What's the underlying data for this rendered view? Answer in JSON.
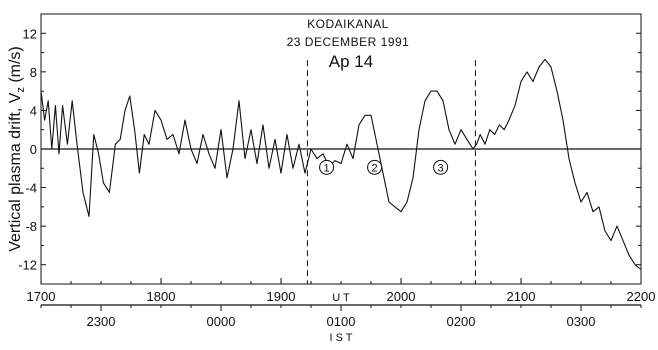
{
  "chart_data": {
    "type": "line",
    "title": "KODAIKANAL",
    "subtitle": "23 DECEMBER 1991",
    "annotation": "Ap 14",
    "ylabel": "Vertical plasma drift, V",
    "ylabel_subscript": "z",
    "ylabel_unit": "(m/s)",
    "ylim": [
      -14,
      14
    ],
    "xlim": [
      17.0,
      22.0
    ],
    "yticks": [
      "12",
      "8",
      "4",
      "0",
      "-4",
      "-8",
      "-12"
    ],
    "ytick_values": [
      12,
      8,
      4,
      0,
      -4,
      -8,
      -12
    ],
    "ut_axis_label": "U T",
    "ut_ticks": [
      "1700",
      "1800",
      "1900",
      "2000",
      "2100",
      "2200"
    ],
    "ut_tick_values": [
      17,
      18,
      19,
      20,
      21,
      22
    ],
    "ist_axis_label": "I S T",
    "ist_ticks": [
      "2300",
      "0000",
      "0100",
      "0200",
      "0300"
    ],
    "ist_tick_values": [
      17.5,
      18.5,
      19.5,
      20.5,
      21.5
    ],
    "vertical_dashed_lines": [
      19.22,
      20.62
    ],
    "markers": [
      {
        "label": "1",
        "x": 19.38,
        "y": -1.9
      },
      {
        "label": "2",
        "x": 19.78,
        "y": -1.9
      },
      {
        "label": "3",
        "x": 20.33,
        "y": -1.9
      }
    ],
    "series": [
      {
        "x": [
          17.0,
          17.03,
          17.06,
          17.09,
          17.12,
          17.15,
          17.18,
          17.22,
          17.26,
          17.3,
          17.35,
          17.4,
          17.44,
          17.48,
          17.52,
          17.57,
          17.62,
          17.66,
          17.7,
          17.74,
          17.78,
          17.82,
          17.86,
          17.9,
          17.95,
          18.0,
          18.05,
          18.1,
          18.15,
          18.2,
          18.25,
          18.3,
          18.35,
          18.4,
          18.45,
          18.5,
          18.55,
          18.6,
          18.65,
          18.7,
          18.75,
          18.8,
          18.85,
          18.9,
          18.95,
          19.0,
          19.05,
          19.1,
          19.15,
          19.2,
          19.25,
          19.3,
          19.35,
          19.4,
          19.45,
          19.5,
          19.55,
          19.6,
          19.65,
          19.7,
          19.75,
          19.8,
          19.85,
          19.9,
          19.95,
          20.0,
          20.05,
          20.1,
          20.15,
          20.2,
          20.25,
          20.3,
          20.35,
          20.4,
          20.45,
          20.5,
          20.55,
          20.6,
          20.63,
          20.66,
          20.7,
          20.74,
          20.78,
          20.82,
          20.86,
          20.9,
          20.95,
          21.0,
          21.05,
          21.1,
          21.15,
          21.2,
          21.25,
          21.3,
          21.35,
          21.4,
          21.45,
          21.5,
          21.55,
          21.6,
          21.65,
          21.7,
          21.75,
          21.8,
          21.85,
          21.9,
          21.95,
          22.0
        ],
        "values": [
          6.0,
          3.0,
          5.0,
          0.0,
          4.5,
          -0.5,
          4.5,
          0.5,
          5.0,
          0.5,
          -4.5,
          -7.0,
          1.5,
          -0.5,
          -3.5,
          -4.5,
          0.5,
          1.0,
          4.0,
          5.5,
          2.0,
          -2.5,
          1.5,
          0.5,
          4.0,
          3.0,
          1.0,
          1.5,
          -0.5,
          3.0,
          0.0,
          -1.5,
          1.5,
          -0.5,
          -2.0,
          2.0,
          -3.0,
          0.0,
          5.0,
          -1.0,
          2.0,
          -1.5,
          2.5,
          -2.0,
          1.0,
          -2.5,
          1.5,
          -2.0,
          0.5,
          -2.5,
          0.0,
          -1.0,
          -0.5,
          -1.8,
          -1.2,
          -1.5,
          0.5,
          -1.0,
          2.5,
          3.5,
          3.5,
          0.5,
          -2.5,
          -5.5,
          -6.0,
          -6.5,
          -5.5,
          -3.0,
          2.0,
          5.0,
          6.0,
          6.0,
          5.0,
          2.0,
          0.5,
          2.0,
          1.0,
          0.0,
          0.5,
          1.5,
          0.5,
          2.0,
          1.5,
          2.5,
          2.0,
          3.0,
          4.5,
          7.0,
          8.0,
          7.0,
          8.5,
          9.3,
          8.5,
          6.0,
          3.0,
          -1.0,
          -3.5,
          -5.5,
          -4.5,
          -6.5,
          -6.0,
          -8.5,
          -9.5,
          -8.0,
          -9.5,
          -11.0,
          -12.0,
          -12.5
        ]
      }
    ],
    "colors": {
      "line": "#111111",
      "axis": "#111111",
      "background": "#ffffff"
    }
  }
}
